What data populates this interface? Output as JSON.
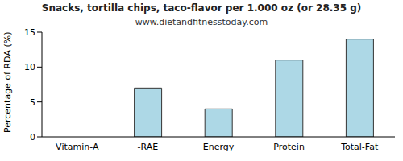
{
  "chart_data": {
    "type": "bar",
    "title": "Snacks, tortilla chips, taco-flavor per 1.000 oz (or 28.35 g)",
    "subtitle": "www.dietandfitnesstoday.com",
    "y_label": "Percentage of RDA (%)",
    "categories": [
      "Vitamin-A",
      "-RAE",
      "Energy",
      "Protein",
      "Total-Fat"
    ],
    "values": [
      0,
      7,
      4,
      11,
      14
    ],
    "color": "#add8e6",
    "ylim": [
      0,
      15
    ],
    "yticks": [
      0,
      5,
      10,
      15
    ],
    "grid": false
  }
}
